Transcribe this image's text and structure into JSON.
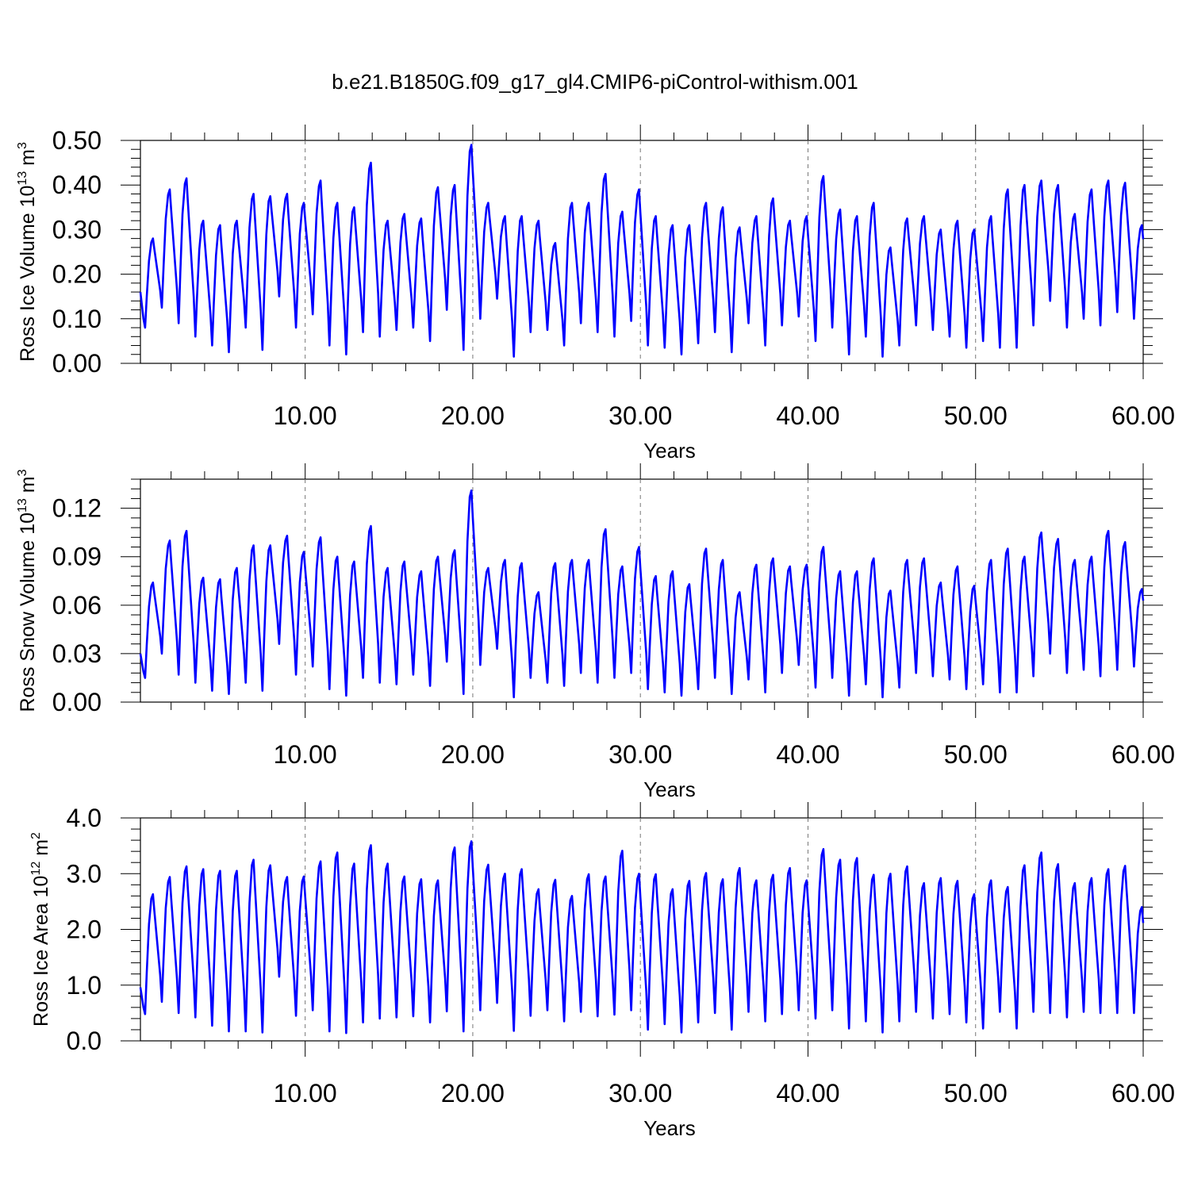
{
  "figure_title": "b.e21.B1850G.f09_g17_gl4.CMIP6-piControl-withism.001",
  "chart_data": [
    {
      "type": "line",
      "title": "",
      "xlabel": "Years",
      "ylabel_main": "Ross Ice Volume 10",
      "ylabel_sup1": "13",
      "ylabel_mid": " m",
      "ylabel_sup2": "3",
      "xlim": [
        0.17,
        60.0
      ],
      "ylim": [
        0.0,
        0.5
      ],
      "xticks": [
        10,
        20,
        30,
        40,
        50,
        60
      ],
      "xtick_labels": [
        "10.00",
        "20.00",
        "30.00",
        "40.00",
        "50.00",
        "60.00"
      ],
      "yticks": [
        0.0,
        0.1,
        0.2,
        0.3,
        0.4,
        0.5
      ],
      "ytick_labels": [
        "0.00",
        "0.10",
        "0.20",
        "0.30",
        "0.40",
        "0.50"
      ],
      "grid": "dashed vertical at major x ticks",
      "line_color": "#0000ff",
      "series": [
        {
          "name": "",
          "x_start": 0.0,
          "x_step": 1.0,
          "peaks": [
            0.28,
            0.39,
            0.415,
            0.32,
            0.31,
            0.32,
            0.38,
            0.375,
            0.38,
            0.36,
            0.41,
            0.36,
            0.35,
            0.45,
            0.32,
            0.335,
            0.325,
            0.395,
            0.4,
            0.49,
            0.36,
            0.33,
            0.33,
            0.32,
            0.27,
            0.36,
            0.36,
            0.425,
            0.34,
            0.39,
            0.33,
            0.31,
            0.31,
            0.36,
            0.35,
            0.305,
            0.33,
            0.37,
            0.32,
            0.33,
            0.42,
            0.345,
            0.33,
            0.36,
            0.26,
            0.325,
            0.33,
            0.3,
            0.32,
            0.3,
            0.33,
            0.39,
            0.4,
            0.41,
            0.4,
            0.335,
            0.39,
            0.41,
            0.405,
            0.31
          ],
          "troughs": [
            0.08,
            0.125,
            0.09,
            0.06,
            0.04,
            0.025,
            0.08,
            0.03,
            0.15,
            0.08,
            0.11,
            0.04,
            0.02,
            0.07,
            0.06,
            0.075,
            0.08,
            0.05,
            0.12,
            0.03,
            0.1,
            0.145,
            0.015,
            0.07,
            0.075,
            0.04,
            0.09,
            0.07,
            0.06,
            0.095,
            0.04,
            0.035,
            0.02,
            0.045,
            0.07,
            0.025,
            0.09,
            0.04,
            0.085,
            0.105,
            0.05,
            0.08,
            0.02,
            0.06,
            0.015,
            0.04,
            0.085,
            0.075,
            0.06,
            0.035,
            0.05,
            0.035,
            0.035,
            0.085,
            0.14,
            0.08,
            0.1,
            0.085,
            0.115,
            0.1
          ]
        }
      ]
    },
    {
      "type": "line",
      "title": "",
      "xlabel": "Years",
      "ylabel_main": "Ross Snow Volume 10",
      "ylabel_sup1": "13",
      "ylabel_mid": " m",
      "ylabel_sup2": "3",
      "xlim": [
        0.17,
        60.0
      ],
      "ylim": [
        0.0,
        0.138
      ],
      "xticks": [
        10,
        20,
        30,
        40,
        50,
        60
      ],
      "xtick_labels": [
        "10.00",
        "20.00",
        "30.00",
        "40.00",
        "50.00",
        "60.00"
      ],
      "yticks": [
        0.0,
        0.03,
        0.06,
        0.09,
        0.12
      ],
      "ytick_labels": [
        "0.00",
        "0.03",
        "0.06",
        "0.09",
        "0.12"
      ],
      "grid": "dashed vertical at major x ticks",
      "line_color": "#0000ff",
      "series": [
        {
          "name": "",
          "x_start": 0.0,
          "x_step": 1.0,
          "peaks": [
            0.074,
            0.1,
            0.106,
            0.077,
            0.076,
            0.083,
            0.097,
            0.097,
            0.103,
            0.093,
            0.102,
            0.09,
            0.087,
            0.109,
            0.083,
            0.087,
            0.081,
            0.09,
            0.094,
            0.131,
            0.083,
            0.088,
            0.086,
            0.068,
            0.086,
            0.088,
            0.088,
            0.107,
            0.084,
            0.096,
            0.078,
            0.081,
            0.073,
            0.095,
            0.088,
            0.068,
            0.085,
            0.089,
            0.084,
            0.085,
            0.096,
            0.081,
            0.081,
            0.089,
            0.069,
            0.088,
            0.089,
            0.074,
            0.084,
            0.072,
            0.088,
            0.095,
            0.09,
            0.105,
            0.101,
            0.088,
            0.09,
            0.106,
            0.099,
            0.07
          ],
          "troughs": [
            0.015,
            0.03,
            0.017,
            0.012,
            0.007,
            0.005,
            0.012,
            0.007,
            0.036,
            0.017,
            0.022,
            0.008,
            0.004,
            0.015,
            0.012,
            0.011,
            0.017,
            0.01,
            0.025,
            0.005,
            0.023,
            0.033,
            0.003,
            0.015,
            0.012,
            0.01,
            0.018,
            0.012,
            0.015,
            0.018,
            0.008,
            0.006,
            0.004,
            0.008,
            0.015,
            0.005,
            0.014,
            0.006,
            0.018,
            0.023,
            0.009,
            0.015,
            0.004,
            0.011,
            0.003,
            0.009,
            0.018,
            0.016,
            0.014,
            0.008,
            0.011,
            0.006,
            0.006,
            0.016,
            0.03,
            0.018,
            0.02,
            0.016,
            0.02,
            0.022
          ]
        }
      ]
    },
    {
      "type": "line",
      "title": "",
      "xlabel": "Years",
      "ylabel_main": "Ross Ice Area 10",
      "ylabel_sup1": "12",
      "ylabel_mid": " m",
      "ylabel_sup2": "2",
      "xlim": [
        0.17,
        60.0
      ],
      "ylim": [
        0.0,
        4.0
      ],
      "xticks": [
        10,
        20,
        30,
        40,
        50,
        60
      ],
      "xtick_labels": [
        "10.00",
        "20.00",
        "30.00",
        "40.00",
        "50.00",
        "60.00"
      ],
      "yticks": [
        0.0,
        1.0,
        2.0,
        3.0,
        4.0
      ],
      "ytick_labels": [
        "0.0",
        "1.0",
        "2.0",
        "3.0",
        "4.0"
      ],
      "grid": "dashed vertical at major x ticks",
      "line_color": "#0000ff",
      "series": [
        {
          "name": "",
          "x_start": 0.0,
          "x_step": 1.0,
          "peaks": [
            2.63,
            2.94,
            3.13,
            3.08,
            3.05,
            3.05,
            3.25,
            3.15,
            2.94,
            2.95,
            3.22,
            3.38,
            3.18,
            3.51,
            3.18,
            2.95,
            2.9,
            2.88,
            3.47,
            3.58,
            3.16,
            3.0,
            3.08,
            2.72,
            2.89,
            2.6,
            2.99,
            2.95,
            3.41,
            3.0,
            2.99,
            2.72,
            2.87,
            3.01,
            2.9,
            3.1,
            2.88,
            2.98,
            3.1,
            2.88,
            3.44,
            3.25,
            3.28,
            2.98,
            3.0,
            3.13,
            2.83,
            2.92,
            2.87,
            2.63,
            2.88,
            2.76,
            3.15,
            3.38,
            3.17,
            2.83,
            2.92,
            3.08,
            3.14,
            2.4
          ],
          "troughs": [
            0.48,
            0.7,
            0.5,
            0.42,
            0.27,
            0.17,
            0.17,
            0.15,
            1.15,
            0.45,
            0.55,
            0.17,
            0.14,
            0.33,
            0.4,
            0.42,
            0.44,
            0.33,
            0.53,
            0.17,
            0.55,
            0.68,
            0.18,
            0.45,
            0.55,
            0.35,
            0.52,
            0.44,
            0.47,
            0.55,
            0.2,
            0.3,
            0.15,
            0.33,
            0.5,
            0.2,
            0.52,
            0.35,
            0.48,
            0.55,
            0.4,
            0.55,
            0.22,
            0.35,
            0.15,
            0.35,
            0.52,
            0.4,
            0.48,
            0.33,
            0.22,
            0.52,
            0.22,
            0.52,
            0.5,
            0.42,
            0.52,
            0.5,
            0.5,
            0.5
          ]
        }
      ]
    }
  ]
}
